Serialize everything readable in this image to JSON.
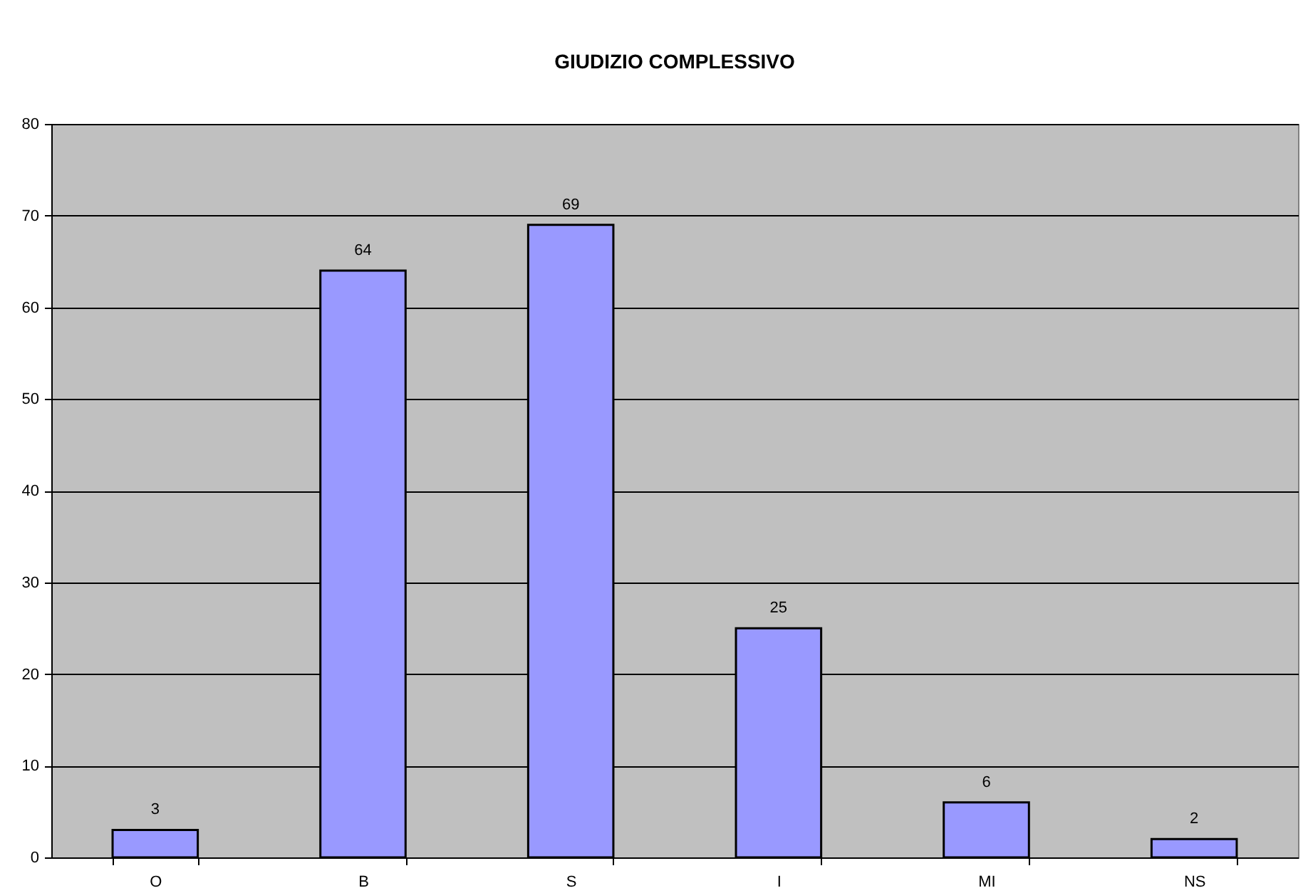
{
  "chart_data": {
    "type": "bar",
    "title": "GIUDIZIO COMPLESSIVO",
    "categories": [
      "O",
      "B",
      "S",
      "I",
      "MI",
      "NS"
    ],
    "values": [
      3,
      64,
      69,
      25,
      6,
      2
    ],
    "color": "#9999ff",
    "ylim": [
      0,
      80
    ],
    "yticks": [
      0,
      10,
      20,
      30,
      40,
      50,
      60,
      70,
      80
    ],
    "grid": "y",
    "data_labels": true
  }
}
